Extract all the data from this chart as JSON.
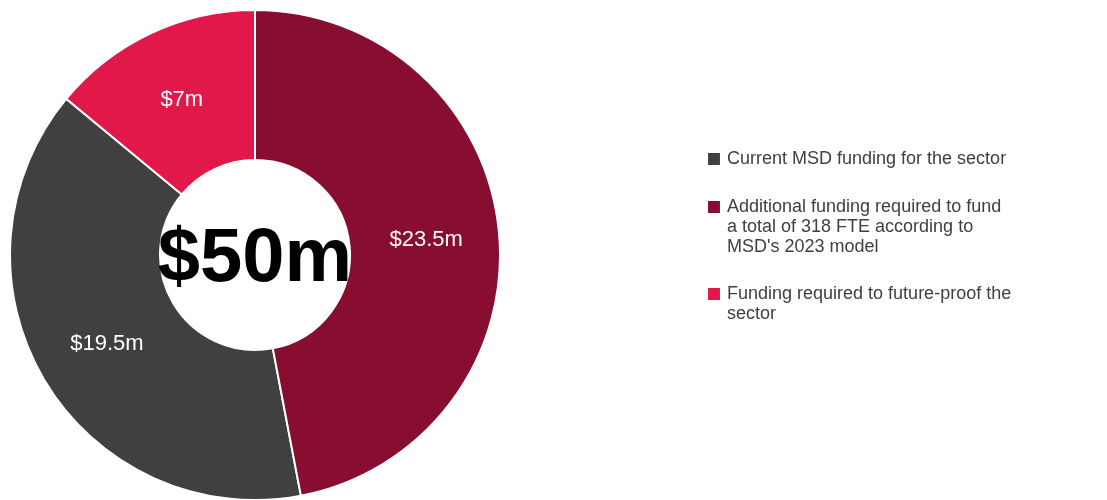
{
  "chart_data": {
    "type": "donut",
    "categories": [
      "Current MSD funding for the sector",
      "Additional funding required to fund a total of 318 FTE according to MSD's 2023 model",
      "Funding required to future-proof the sector"
    ],
    "values": [
      19.5,
      23.5,
      7
    ],
    "colors": [
      "#404040",
      "#870e31",
      "#e2174a"
    ],
    "value_labels": [
      "$19.5m",
      "$23.5m",
      "$7m"
    ],
    "annotations": [
      "$50m"
    ],
    "legend": "right"
  }
}
